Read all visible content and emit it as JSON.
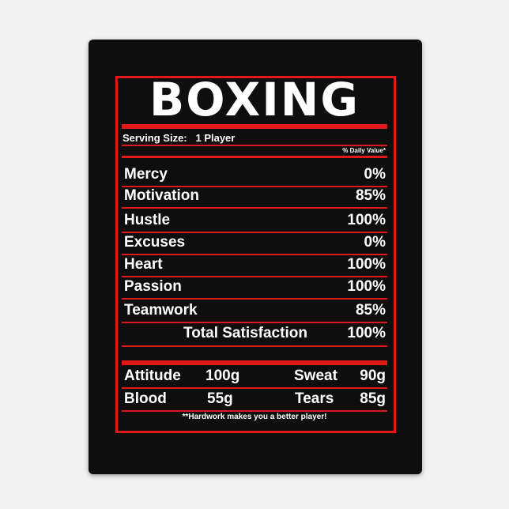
{
  "title": "BOXING",
  "serving_size": "Serving Size:   1 Player",
  "daily_value_label": "% Daily Value*",
  "rows": [
    {
      "label": "Mercy",
      "value": "0%"
    },
    {
      "label": "Motivation",
      "value": "85%"
    },
    {
      "label": "Hustle",
      "value": "100%"
    },
    {
      "label": "Excuses",
      "value": "0%"
    },
    {
      "label": "Heart",
      "value": "100%"
    },
    {
      "label": "Passion",
      "value": "100%"
    },
    {
      "label": "Teamwork",
      "value": "85%"
    }
  ],
  "total": {
    "label": "Total Satisfaction",
    "value": "100%"
  },
  "grams": [
    {
      "label": "Attitude",
      "value": "100g",
      "label2": "Sweat",
      "value2": "90g"
    },
    {
      "label": "Blood",
      "value": "55g",
      "label2": "Tears",
      "value2": "85g"
    }
  ],
  "footnote": "**Hardwork makes you a better player!",
  "colors": {
    "background": "#0e0e0e",
    "accent": "#e01818",
    "text": "#ffffff"
  }
}
